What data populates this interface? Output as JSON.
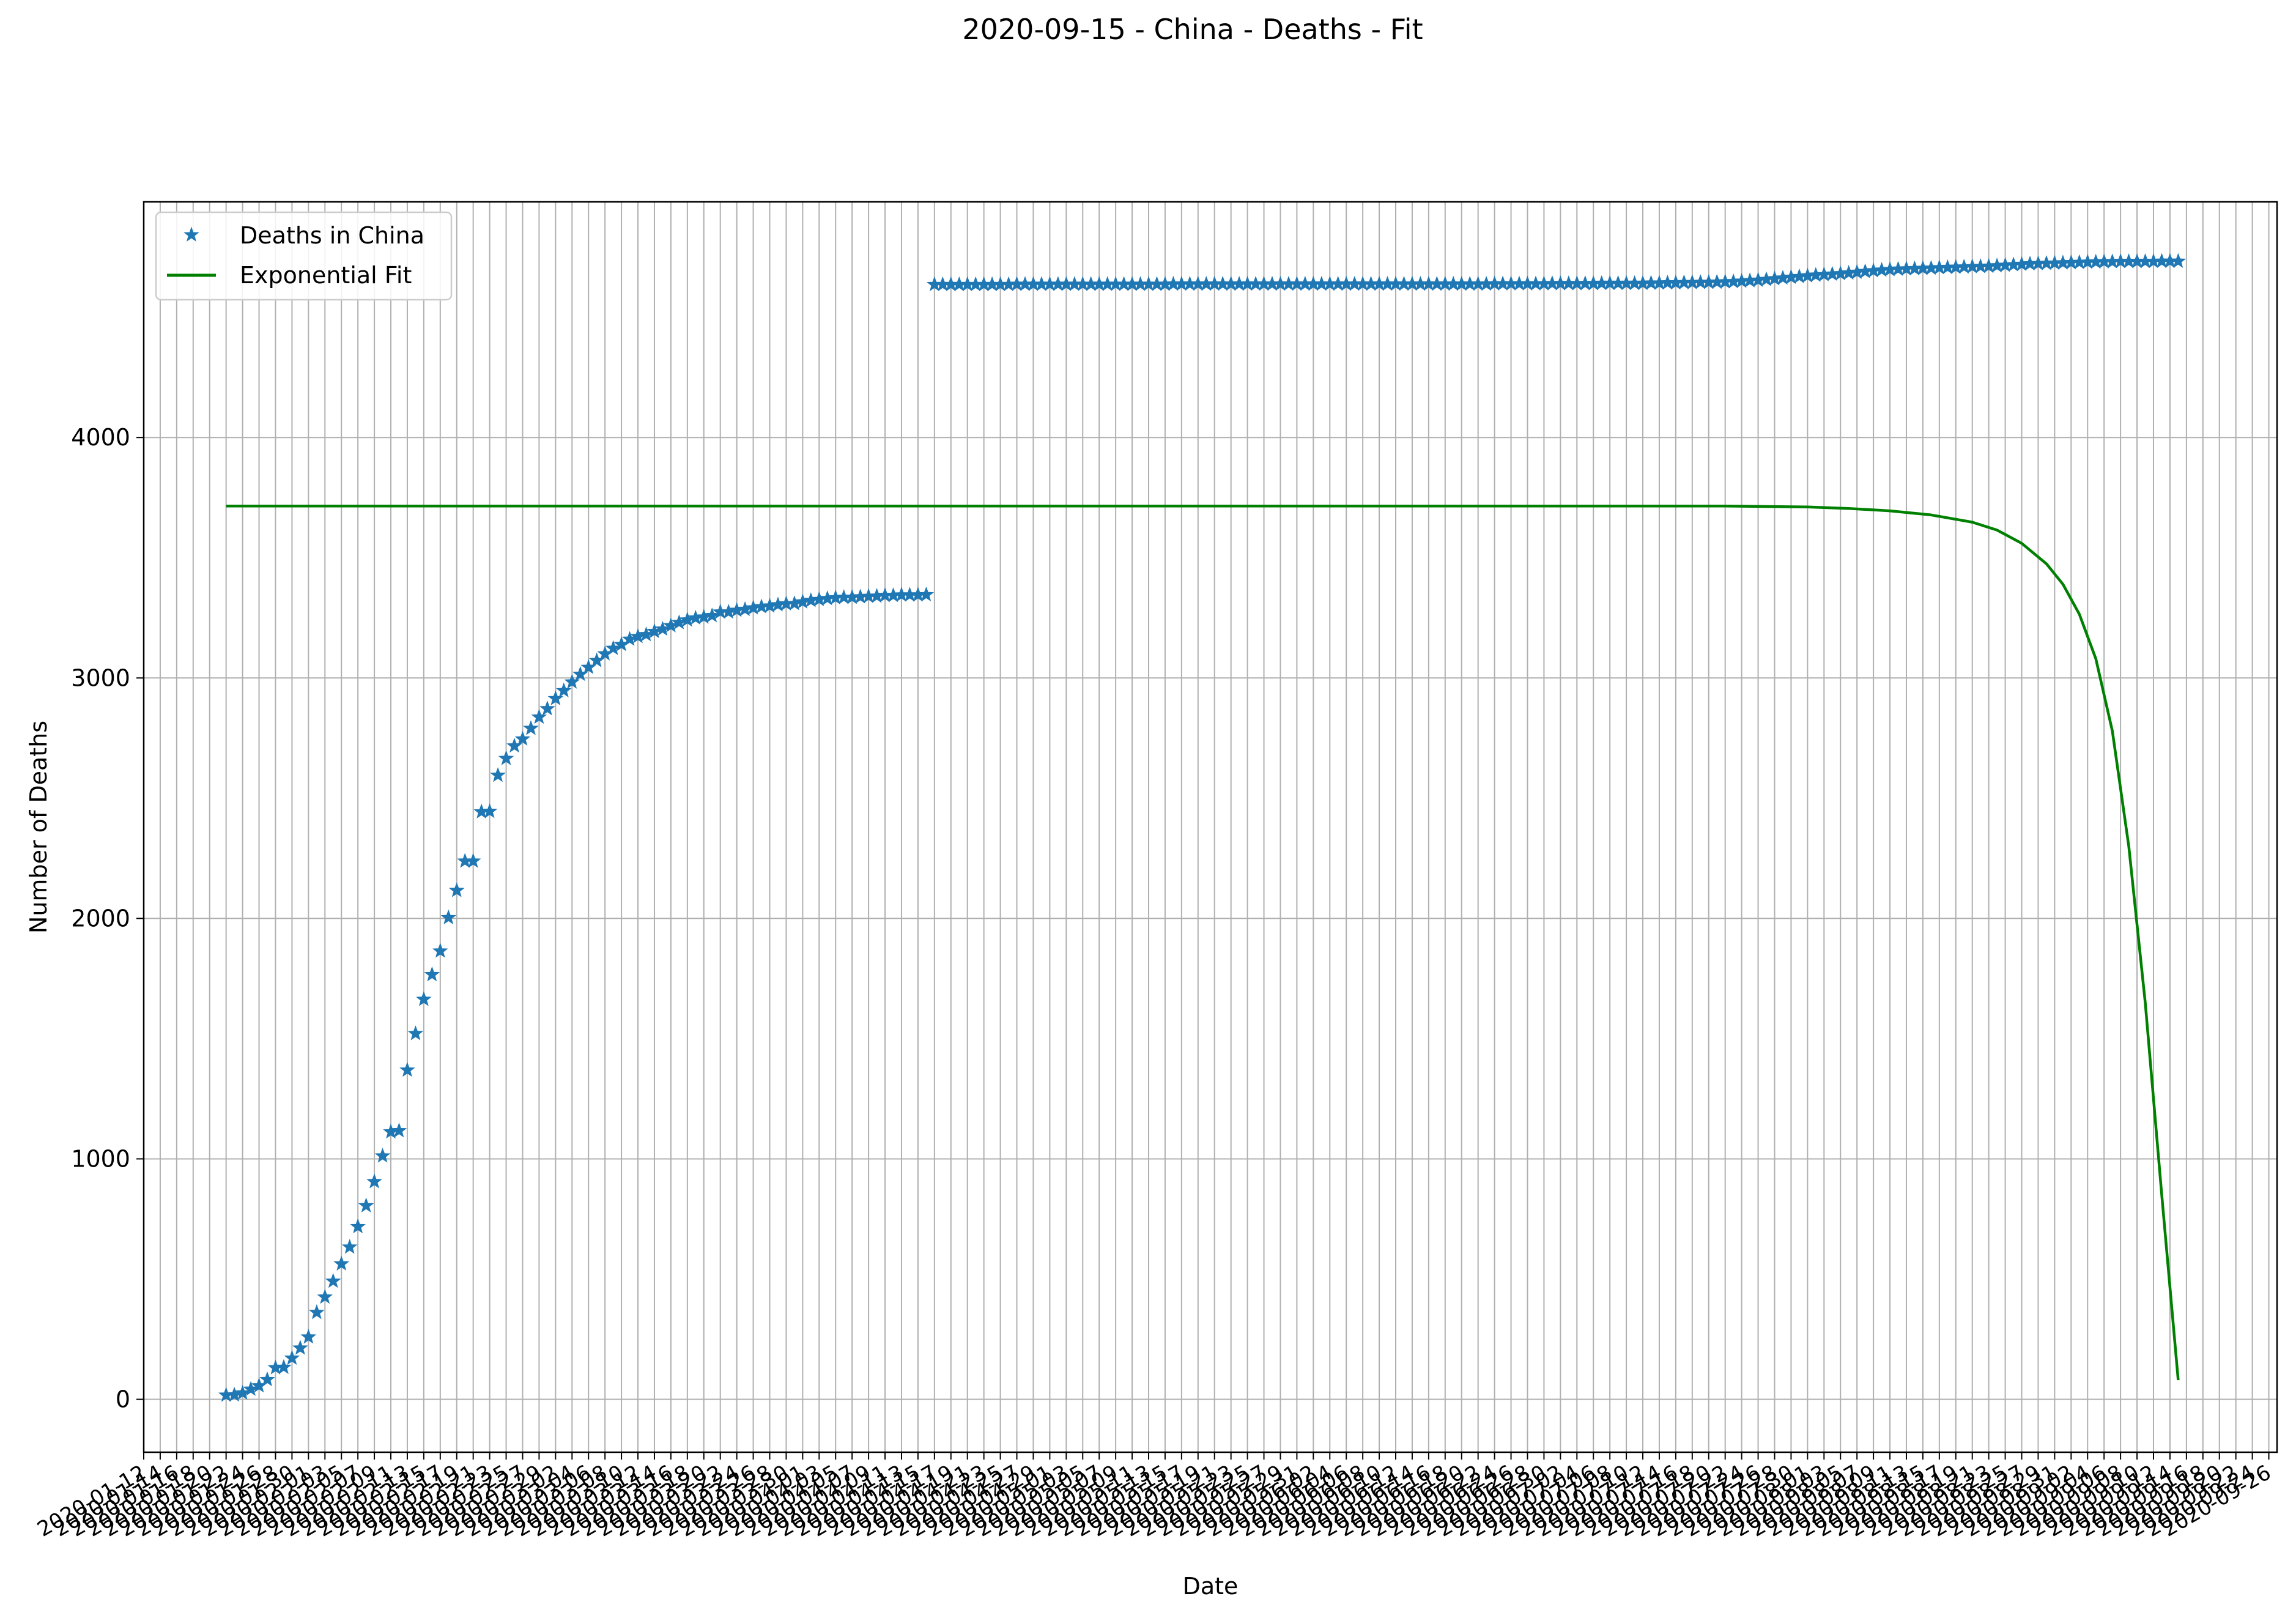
{
  "chart_data": {
    "type": "line",
    "title": "2020-09-15 - China - Deaths - Fit",
    "xlabel": "Date",
    "ylabel": "Number of Deaths",
    "xlim": [
      "2020-01-12",
      "2020-09-27"
    ],
    "ylim": [
      -220,
      4980
    ],
    "grid": true,
    "legend_position": "top-left",
    "y_ticks": [
      0,
      1000,
      2000,
      3000,
      4000
    ],
    "x_tick_labels_legible": [
      "2020-01-12",
      "2020-09-24"
    ],
    "colors": {
      "data": "#1f77b4",
      "fit": "#008000",
      "grid": "#b0b0b0"
    },
    "series": [
      {
        "name": "Deaths in China",
        "style": "star-markers",
        "color": "#1f77b4",
        "points": [
          [
            "2020-01-22",
            17
          ],
          [
            "2020-01-23",
            18
          ],
          [
            "2020-01-24",
            26
          ],
          [
            "2020-01-25",
            42
          ],
          [
            "2020-01-26",
            56
          ],
          [
            "2020-01-27",
            82
          ],
          [
            "2020-01-28",
            131
          ],
          [
            "2020-01-29",
            133
          ],
          [
            "2020-01-30",
            171
          ],
          [
            "2020-01-31",
            213
          ],
          [
            "2020-02-01",
            259
          ],
          [
            "2020-02-02",
            361
          ],
          [
            "2020-02-03",
            425
          ],
          [
            "2020-02-04",
            491
          ],
          [
            "2020-02-05",
            563
          ],
          [
            "2020-02-06",
            633
          ],
          [
            "2020-02-07",
            718
          ],
          [
            "2020-02-08",
            805
          ],
          [
            "2020-02-09",
            905
          ],
          [
            "2020-02-10",
            1012
          ],
          [
            "2020-02-11",
            1112
          ],
          [
            "2020-02-12",
            1117
          ],
          [
            "2020-02-13",
            1369
          ],
          [
            "2020-02-14",
            1521
          ],
          [
            "2020-02-15",
            1663
          ],
          [
            "2020-02-16",
            1766
          ],
          [
            "2020-02-17",
            1864
          ],
          [
            "2020-02-18",
            2003
          ],
          [
            "2020-02-19",
            2116
          ],
          [
            "2020-02-20",
            2238
          ],
          [
            "2020-02-21",
            2238
          ],
          [
            "2020-02-22",
            2443
          ],
          [
            "2020-02-23",
            2445
          ],
          [
            "2020-02-24",
            2595
          ],
          [
            "2020-02-25",
            2665
          ],
          [
            "2020-02-26",
            2717
          ],
          [
            "2020-02-27",
            2746
          ],
          [
            "2020-02-28",
            2790
          ],
          [
            "2020-02-29",
            2837
          ],
          [
            "2020-03-01",
            2872
          ],
          [
            "2020-03-02",
            2914
          ],
          [
            "2020-03-03",
            2947
          ],
          [
            "2020-03-04",
            2983
          ],
          [
            "2020-03-05",
            3015
          ],
          [
            "2020-03-06",
            3044
          ],
          [
            "2020-03-07",
            3072
          ],
          [
            "2020-03-08",
            3100
          ],
          [
            "2020-03-09",
            3123
          ],
          [
            "2020-03-10",
            3139
          ],
          [
            "2020-03-11",
            3161
          ],
          [
            "2020-03-12",
            3172
          ],
          [
            "2020-03-13",
            3180
          ],
          [
            "2020-03-14",
            3193
          ],
          [
            "2020-03-15",
            3203
          ],
          [
            "2020-03-16",
            3217
          ],
          [
            "2020-03-17",
            3230
          ],
          [
            "2020-03-18",
            3241
          ],
          [
            "2020-03-19",
            3249
          ],
          [
            "2020-03-20",
            3253
          ],
          [
            "2020-03-21",
            3259
          ],
          [
            "2020-03-22",
            3274
          ],
          [
            "2020-03-23",
            3274
          ],
          [
            "2020-03-24",
            3281
          ],
          [
            "2020-03-25",
            3285
          ],
          [
            "2020-03-26",
            3291
          ],
          [
            "2020-03-27",
            3296
          ],
          [
            "2020-03-28",
            3299
          ],
          [
            "2020-03-29",
            3304
          ],
          [
            "2020-03-30",
            3308
          ],
          [
            "2020-03-31",
            3309
          ],
          [
            "2020-04-01",
            3316
          ],
          [
            "2020-04-02",
            3322
          ],
          [
            "2020-04-03",
            3326
          ],
          [
            "2020-04-04",
            3330
          ],
          [
            "2020-04-05",
            3333
          ],
          [
            "2020-04-06",
            3335
          ],
          [
            "2020-04-07",
            3335
          ],
          [
            "2020-04-08",
            3337
          ],
          [
            "2020-04-09",
            3339
          ],
          [
            "2020-04-10",
            3340
          ],
          [
            "2020-04-11",
            3343
          ],
          [
            "2020-04-12",
            3343
          ],
          [
            "2020-04-13",
            3345
          ],
          [
            "2020-04-14",
            3345
          ],
          [
            "2020-04-15",
            3345
          ],
          [
            "2020-04-16",
            3346
          ],
          [
            "2020-04-17",
            4636
          ],
          [
            "2020-04-18",
            4636
          ],
          [
            "2020-04-19",
            4636
          ],
          [
            "2020-04-20",
            4636
          ],
          [
            "2020-04-21",
            4636
          ],
          [
            "2020-04-22",
            4636
          ],
          [
            "2020-04-23",
            4636
          ],
          [
            "2020-04-24",
            4636
          ],
          [
            "2020-04-25",
            4636
          ],
          [
            "2020-04-26",
            4636
          ],
          [
            "2020-04-27",
            4637
          ],
          [
            "2020-04-28",
            4637
          ],
          [
            "2020-04-29",
            4637
          ],
          [
            "2020-04-30",
            4637
          ],
          [
            "2020-05-01",
            4637
          ],
          [
            "2020-05-02",
            4637
          ],
          [
            "2020-05-03",
            4637
          ],
          [
            "2020-05-04",
            4637
          ],
          [
            "2020-05-05",
            4637
          ],
          [
            "2020-05-06",
            4637
          ],
          [
            "2020-05-07",
            4637
          ],
          [
            "2020-05-08",
            4637
          ],
          [
            "2020-05-09",
            4637
          ],
          [
            "2020-05-10",
            4637
          ],
          [
            "2020-05-11",
            4637
          ],
          [
            "2020-05-12",
            4637
          ],
          [
            "2020-05-13",
            4637
          ],
          [
            "2020-05-14",
            4637
          ],
          [
            "2020-05-15",
            4637
          ],
          [
            "2020-05-16",
            4638
          ],
          [
            "2020-05-17",
            4638
          ],
          [
            "2020-05-18",
            4638
          ],
          [
            "2020-05-19",
            4638
          ],
          [
            "2020-05-20",
            4638
          ],
          [
            "2020-05-21",
            4638
          ],
          [
            "2020-05-22",
            4638
          ],
          [
            "2020-05-23",
            4638
          ],
          [
            "2020-05-24",
            4638
          ],
          [
            "2020-05-25",
            4638
          ],
          [
            "2020-05-26",
            4638
          ],
          [
            "2020-05-27",
            4638
          ],
          [
            "2020-05-28",
            4638
          ],
          [
            "2020-05-29",
            4638
          ],
          [
            "2020-05-30",
            4638
          ],
          [
            "2020-05-31",
            4638
          ],
          [
            "2020-06-01",
            4638
          ],
          [
            "2020-06-02",
            4638
          ],
          [
            "2020-06-03",
            4638
          ],
          [
            "2020-06-04",
            4638
          ],
          [
            "2020-06-05",
            4638
          ],
          [
            "2020-06-06",
            4638
          ],
          [
            "2020-06-07",
            4638
          ],
          [
            "2020-06-08",
            4638
          ],
          [
            "2020-06-09",
            4638
          ],
          [
            "2020-06-10",
            4638
          ],
          [
            "2020-06-11",
            4638
          ],
          [
            "2020-06-12",
            4638
          ],
          [
            "2020-06-13",
            4638
          ],
          [
            "2020-06-14",
            4638
          ],
          [
            "2020-06-15",
            4638
          ],
          [
            "2020-06-16",
            4638
          ],
          [
            "2020-06-17",
            4638
          ],
          [
            "2020-06-18",
            4638
          ],
          [
            "2020-06-19",
            4638
          ],
          [
            "2020-06-20",
            4638
          ],
          [
            "2020-06-21",
            4638
          ],
          [
            "2020-06-22",
            4638
          ],
          [
            "2020-06-23",
            4638
          ],
          [
            "2020-06-24",
            4639
          ],
          [
            "2020-06-25",
            4639
          ],
          [
            "2020-06-26",
            4639
          ],
          [
            "2020-06-27",
            4639
          ],
          [
            "2020-06-28",
            4639
          ],
          [
            "2020-06-29",
            4639
          ],
          [
            "2020-06-30",
            4639
          ],
          [
            "2020-07-01",
            4640
          ],
          [
            "2020-07-02",
            4640
          ],
          [
            "2020-07-03",
            4640
          ],
          [
            "2020-07-04",
            4640
          ],
          [
            "2020-07-05",
            4640
          ],
          [
            "2020-07-06",
            4640
          ],
          [
            "2020-07-07",
            4641
          ],
          [
            "2020-07-08",
            4641
          ],
          [
            "2020-07-09",
            4641
          ],
          [
            "2020-07-10",
            4641
          ],
          [
            "2020-07-11",
            4641
          ],
          [
            "2020-07-12",
            4641
          ],
          [
            "2020-07-13",
            4642
          ],
          [
            "2020-07-14",
            4642
          ],
          [
            "2020-07-15",
            4643
          ],
          [
            "2020-07-16",
            4643
          ],
          [
            "2020-07-17",
            4644
          ],
          [
            "2020-07-18",
            4644
          ],
          [
            "2020-07-19",
            4645
          ],
          [
            "2020-07-20",
            4645
          ],
          [
            "2020-07-21",
            4646
          ],
          [
            "2020-07-22",
            4647
          ],
          [
            "2020-07-23",
            4648
          ],
          [
            "2020-07-24",
            4650
          ],
          [
            "2020-07-25",
            4652
          ],
          [
            "2020-07-26",
            4654
          ],
          [
            "2020-07-27",
            4657
          ],
          [
            "2020-07-28",
            4660
          ],
          [
            "2020-07-29",
            4663
          ],
          [
            "2020-07-30",
            4666
          ],
          [
            "2020-07-31",
            4669
          ],
          [
            "2020-08-01",
            4672
          ],
          [
            "2020-08-02",
            4675
          ],
          [
            "2020-08-03",
            4677
          ],
          [
            "2020-08-04",
            4679
          ],
          [
            "2020-08-05",
            4681
          ],
          [
            "2020-08-06",
            4684
          ],
          [
            "2020-08-07",
            4687
          ],
          [
            "2020-08-08",
            4690
          ],
          [
            "2020-08-09",
            4693
          ],
          [
            "2020-08-10",
            4696
          ],
          [
            "2020-08-11",
            4698
          ],
          [
            "2020-08-12",
            4700
          ],
          [
            "2020-08-13",
            4701
          ],
          [
            "2020-08-14",
            4702
          ],
          [
            "2020-08-15",
            4703
          ],
          [
            "2020-08-16",
            4704
          ],
          [
            "2020-08-17",
            4706
          ],
          [
            "2020-08-18",
            4707
          ],
          [
            "2020-08-19",
            4708
          ],
          [
            "2020-08-20",
            4709
          ],
          [
            "2020-08-21",
            4710
          ],
          [
            "2020-08-22",
            4711
          ],
          [
            "2020-08-23",
            4712
          ],
          [
            "2020-08-24",
            4714
          ],
          [
            "2020-08-25",
            4716
          ],
          [
            "2020-08-26",
            4718
          ],
          [
            "2020-08-27",
            4720
          ],
          [
            "2020-08-28",
            4722
          ],
          [
            "2020-08-29",
            4723
          ],
          [
            "2020-08-30",
            4724
          ],
          [
            "2020-08-31",
            4725
          ],
          [
            "2020-09-01",
            4726
          ],
          [
            "2020-09-02",
            4727
          ],
          [
            "2020-09-03",
            4728
          ],
          [
            "2020-09-04",
            4729
          ],
          [
            "2020-09-05",
            4730
          ],
          [
            "2020-09-06",
            4731
          ],
          [
            "2020-09-07",
            4731
          ],
          [
            "2020-09-08",
            4732
          ],
          [
            "2020-09-09",
            4732
          ],
          [
            "2020-09-10",
            4732
          ],
          [
            "2020-09-11",
            4732
          ],
          [
            "2020-09-12",
            4732
          ],
          [
            "2020-09-13",
            4733
          ],
          [
            "2020-09-14",
            4733
          ],
          [
            "2020-09-15",
            4733
          ]
        ]
      },
      {
        "name": "Exponential Fit",
        "style": "line",
        "color": "#008000",
        "points": [
          [
            "2020-01-22",
            3715
          ],
          [
            "2020-07-22",
            3715
          ],
          [
            "2020-07-27",
            3713
          ],
          [
            "2020-08-01",
            3711
          ],
          [
            "2020-08-06",
            3705
          ],
          [
            "2020-08-11",
            3695
          ],
          [
            "2020-08-16",
            3678
          ],
          [
            "2020-08-21",
            3648
          ],
          [
            "2020-08-24",
            3615
          ],
          [
            "2020-08-27",
            3560
          ],
          [
            "2020-08-30",
            3475
          ],
          [
            "2020-09-01",
            3390
          ],
          [
            "2020-09-03",
            3265
          ],
          [
            "2020-09-05",
            3080
          ],
          [
            "2020-09-07",
            2780
          ],
          [
            "2020-09-09",
            2300
          ],
          [
            "2020-09-11",
            1650
          ],
          [
            "2020-09-13",
            850
          ],
          [
            "2020-09-15",
            80
          ]
        ]
      }
    ]
  }
}
